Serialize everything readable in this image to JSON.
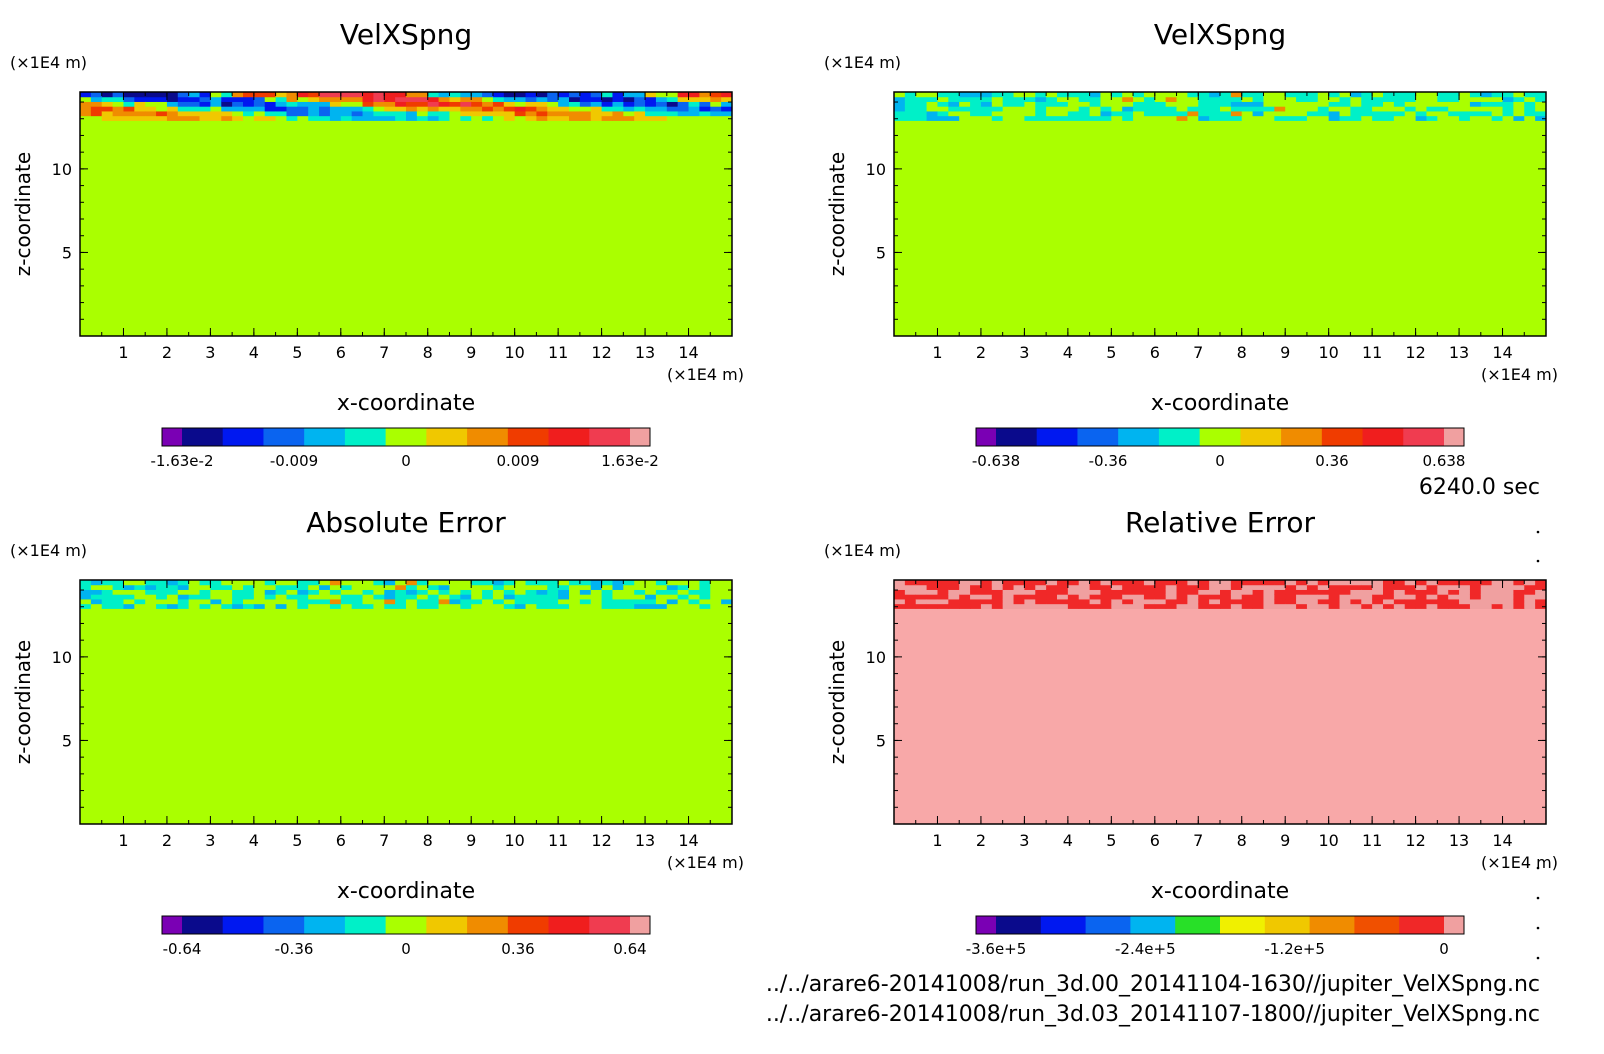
{
  "palettes": {
    "rainbow14": [
      "#7a00b4",
      "#0a0a8c",
      "#0018f0",
      "#0a64f0",
      "#00b4f0",
      "#00f0c8",
      "#aaff00",
      "#f0c800",
      "#f08c00",
      "#f03c00",
      "#f01e1e",
      "#f03c50",
      "#f0a0a0"
    ],
    "relative": [
      "#7a00b4",
      "#0a0a8c",
      "#0018f0",
      "#0a64f0",
      "#00b4f0",
      "#28e028",
      "#f0f000",
      "#f0c800",
      "#f08c00",
      "#f05000",
      "#f02828",
      "#f0a0a0"
    ]
  },
  "time_label": "6240.0 sec",
  "files": [
    "../../arare6-20141008/run_3d.00_20141104-1630//jupiter_VelXSpng.nc",
    "../../arare6-20141008/run_3d.03_20141107-1800//jupiter_VelXSpng.nc"
  ],
  "chart_data": [
    {
      "type": "heatmap",
      "title": "VelXSpng",
      "xlabel": "x-coordinate",
      "ylabel": "z-coordinate",
      "x_unit": "(×1E4 m)",
      "y_unit": "(×1E4 m)",
      "xlim": [
        0,
        15
      ],
      "ylim": [
        0,
        14.6
      ],
      "xticks": [
        "1",
        "2",
        "3",
        "4",
        "5",
        "6",
        "7",
        "8",
        "9",
        "10",
        "11",
        "12",
        "13",
        "14"
      ],
      "yticks": [
        "5",
        "10"
      ],
      "background_color": "#aaff00",
      "colorbar_labels": [
        "-1.63e-2",
        "-0.009",
        "0",
        "0.009",
        "1.63e-2"
      ],
      "palette": "rainbow14",
      "disturbed_band_z": [
        12.9,
        14.6
      ]
    },
    {
      "type": "heatmap",
      "title": "VelXSpng",
      "xlabel": "x-coordinate",
      "ylabel": "z-coordinate",
      "x_unit": "(×1E4 m)",
      "y_unit": "(×1E4 m)",
      "xlim": [
        0,
        15
      ],
      "ylim": [
        0,
        14.6
      ],
      "xticks": [
        "1",
        "2",
        "3",
        "4",
        "5",
        "6",
        "7",
        "8",
        "9",
        "10",
        "11",
        "12",
        "13",
        "14"
      ],
      "yticks": [
        "5",
        "10"
      ],
      "background_color": "#aaff00",
      "colorbar_labels": [
        "-0.638",
        "-0.36",
        "0",
        "0.36",
        "0.638"
      ],
      "palette": "rainbow14",
      "disturbed_band_z": [
        12.9,
        14.6
      ]
    },
    {
      "type": "heatmap",
      "title": "Absolute Error",
      "xlabel": "x-coordinate",
      "ylabel": "z-coordinate",
      "x_unit": "(×1E4 m)",
      "y_unit": "(×1E4 m)",
      "xlim": [
        0,
        15
      ],
      "ylim": [
        0,
        14.6
      ],
      "xticks": [
        "1",
        "2",
        "3",
        "4",
        "5",
        "6",
        "7",
        "8",
        "9",
        "10",
        "11",
        "12",
        "13",
        "14"
      ],
      "yticks": [
        "5",
        "10"
      ],
      "background_color": "#aaff00",
      "colorbar_labels": [
        "-0.64",
        "-0.36",
        "0",
        "0.36",
        "0.64"
      ],
      "palette": "rainbow14",
      "disturbed_band_z": [
        12.9,
        14.6
      ]
    },
    {
      "type": "heatmap",
      "title": "Relative Error",
      "xlabel": "x-coordinate",
      "ylabel": "z-coordinate",
      "x_unit": "(×1E4 m)",
      "y_unit": "(×1E4 m)",
      "xlim": [
        0,
        15
      ],
      "ylim": [
        0,
        14.6
      ],
      "xticks": [
        "1",
        "2",
        "3",
        "4",
        "5",
        "6",
        "7",
        "8",
        "9",
        "10",
        "11",
        "12",
        "13",
        "14"
      ],
      "yticks": [
        "5",
        "10"
      ],
      "background_color": "#f8a8a8",
      "colorbar_labels": [
        "-3.6e+5",
        "-2.4e+5",
        "-1.2e+5",
        "0"
      ],
      "palette": "relative",
      "disturbed_band_z": [
        12.9,
        14.6
      ]
    }
  ]
}
